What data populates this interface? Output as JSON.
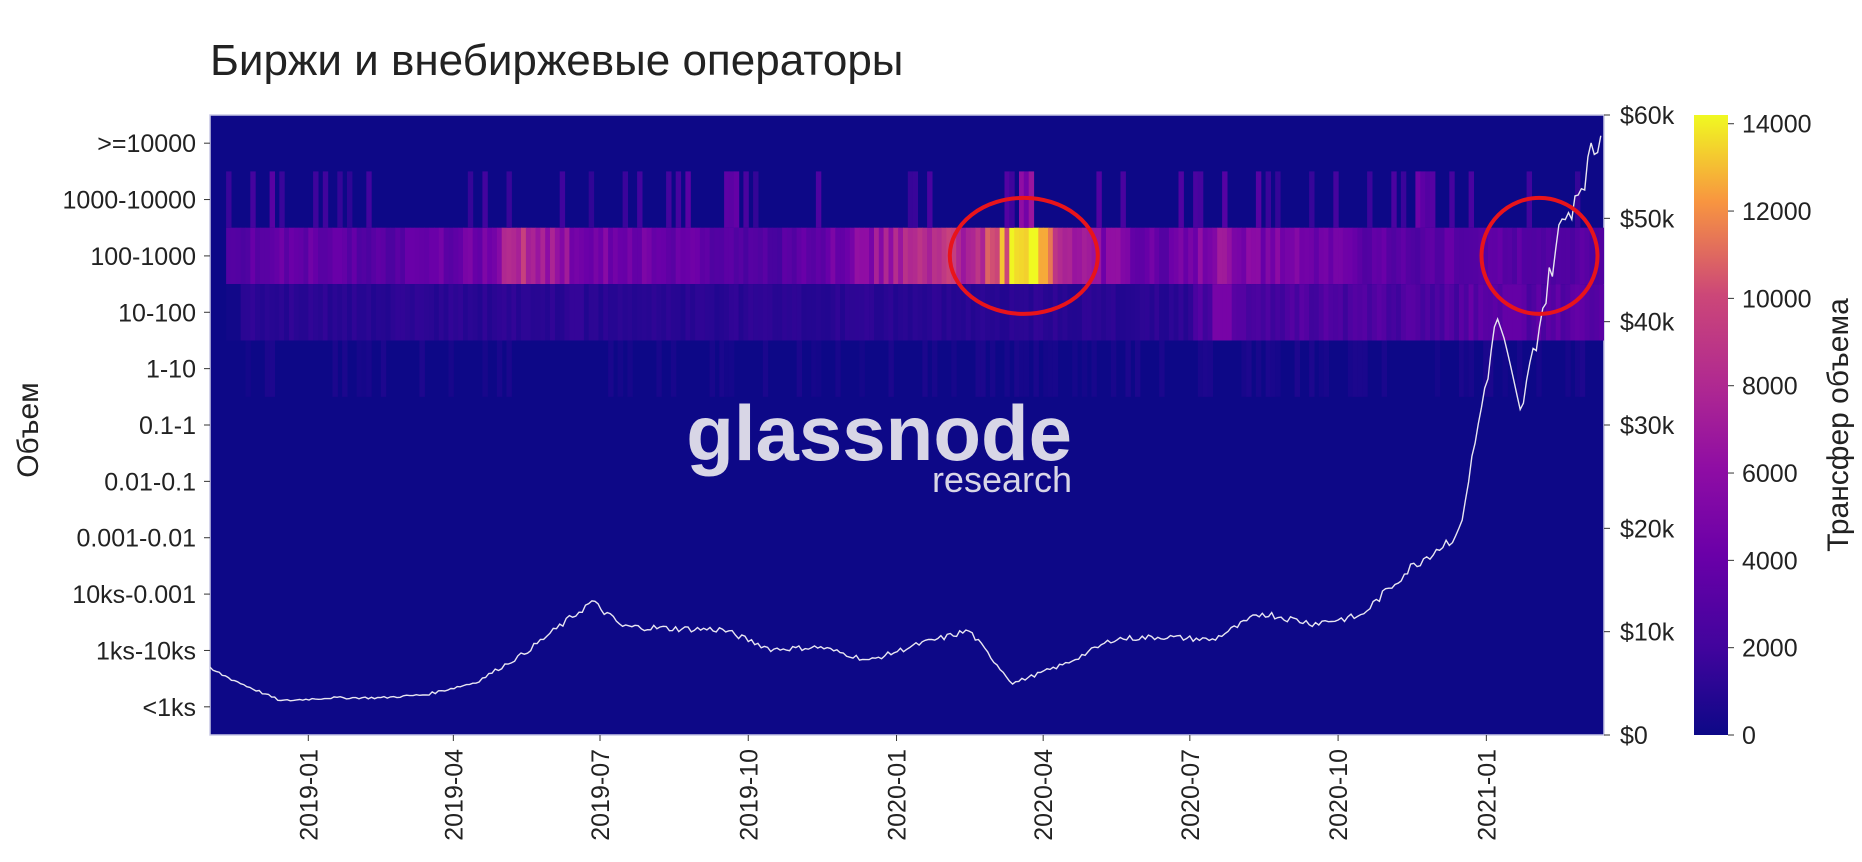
{
  "chart_data": {
    "type": "heatmap",
    "title": "Биржи и внебиржевые операторы",
    "ylabel": "Объем",
    "colorbar_label": "Трансфер объема",
    "y_categories": [
      "<1ks",
      "1ks-10ks",
      "10ks-0.001",
      "0.001-0.01",
      "0.01-0.1",
      "0.1-1",
      "1-10",
      "10-100",
      "100-1000",
      "1000-10000",
      ">=10000"
    ],
    "x_range": [
      "2018-11-01",
      "2021-03-15"
    ],
    "x_ticks": [
      "2019-01",
      "2019-04",
      "2019-07",
      "2019-10",
      "2020-01",
      "2020-04",
      "2020-07",
      "2020-10",
      "2021-01"
    ],
    "colorbar": {
      "min": 0,
      "max": 14200,
      "ticks": [
        "0",
        "2000",
        "4000",
        "6000",
        "8000",
        "10000",
        "12000",
        "14000"
      ],
      "colormap": "plasma"
    },
    "price_axis": {
      "label_ticks": [
        "$0",
        "$10k",
        "$20k",
        "$30k",
        "$40k",
        "$50k",
        "$60k"
      ],
      "max": 60000
    },
    "heat_rows": {
      "100-1000": [
        {
          "x": "2018-11-15",
          "v": 3000
        },
        {
          "x": "2018-12-15",
          "v": 4000
        },
        {
          "x": "2019-01-15",
          "v": 3500
        },
        {
          "x": "2019-02-15",
          "v": 3200
        },
        {
          "x": "2019-03-15",
          "v": 3600
        },
        {
          "x": "2019-04-15",
          "v": 4500
        },
        {
          "x": "2019-05-15",
          "v": 8800
        },
        {
          "x": "2019-06-15",
          "v": 5200
        },
        {
          "x": "2019-07-15",
          "v": 4800
        },
        {
          "x": "2019-08-15",
          "v": 4000
        },
        {
          "x": "2019-09-15",
          "v": 3200
        },
        {
          "x": "2019-10-15",
          "v": 2600
        },
        {
          "x": "2019-11-15",
          "v": 3800
        },
        {
          "x": "2019-12-15",
          "v": 6000
        },
        {
          "x": "2020-01-15",
          "v": 9600
        },
        {
          "x": "2020-02-15",
          "v": 7000
        },
        {
          "x": "2020-03-20",
          "v": 14200
        },
        {
          "x": "2020-04-15",
          "v": 6500
        },
        {
          "x": "2020-05-15",
          "v": 5200
        },
        {
          "x": "2020-06-15",
          "v": 3600
        },
        {
          "x": "2020-07-15",
          "v": 6000
        },
        {
          "x": "2020-08-15",
          "v": 5000
        },
        {
          "x": "2020-09-15",
          "v": 4400
        },
        {
          "x": "2020-10-15",
          "v": 3600
        },
        {
          "x": "2020-11-15",
          "v": 3200
        },
        {
          "x": "2020-12-15",
          "v": 3400
        },
        {
          "x": "2021-01-15",
          "v": 3200
        },
        {
          "x": "2021-02-15",
          "v": 3000
        }
      ],
      "1000-10000": [
        {
          "x": "2020-03-20",
          "v": 7500
        },
        {
          "x": "2019-09-20",
          "v": 5500
        },
        {
          "x": "2020-11-20",
          "v": 4500
        }
      ],
      "10-100": [
        {
          "x": "2019-06-15",
          "v": 1500
        },
        {
          "x": "2020-07-20",
          "v": 4800
        },
        {
          "x": "2020-11-15",
          "v": 2800
        },
        {
          "x": "2021-01-15",
          "v": 3800
        }
      ]
    },
    "price_series": [
      {
        "x": "2018-11-01",
        "y": 6400
      },
      {
        "x": "2018-11-20",
        "y": 5000
      },
      {
        "x": "2018-12-15",
        "y": 3300
      },
      {
        "x": "2019-01-15",
        "y": 3600
      },
      {
        "x": "2019-02-15",
        "y": 3600
      },
      {
        "x": "2019-03-15",
        "y": 3900
      },
      {
        "x": "2019-04-15",
        "y": 5100
      },
      {
        "x": "2019-05-15",
        "y": 7900
      },
      {
        "x": "2019-06-26",
        "y": 12900
      },
      {
        "x": "2019-07-15",
        "y": 10500
      },
      {
        "x": "2019-08-15",
        "y": 10300
      },
      {
        "x": "2019-09-15",
        "y": 10200
      },
      {
        "x": "2019-10-15",
        "y": 8300
      },
      {
        "x": "2019-11-15",
        "y": 8500
      },
      {
        "x": "2019-12-15",
        "y": 7200
      },
      {
        "x": "2020-01-15",
        "y": 8800
      },
      {
        "x": "2020-02-15",
        "y": 10100
      },
      {
        "x": "2020-03-13",
        "y": 5000
      },
      {
        "x": "2020-04-15",
        "y": 6900
      },
      {
        "x": "2020-05-15",
        "y": 9300
      },
      {
        "x": "2020-06-15",
        "y": 9500
      },
      {
        "x": "2020-07-15",
        "y": 9200
      },
      {
        "x": "2020-08-15",
        "y": 11800
      },
      {
        "x": "2020-09-15",
        "y": 10800
      },
      {
        "x": "2020-10-15",
        "y": 11500
      },
      {
        "x": "2020-11-15",
        "y": 16200
      },
      {
        "x": "2020-12-15",
        "y": 19500
      },
      {
        "x": "2021-01-08",
        "y": 40500
      },
      {
        "x": "2021-01-22",
        "y": 31000
      },
      {
        "x": "2021-02-15",
        "y": 48500
      },
      {
        "x": "2021-03-13",
        "y": 58000
      }
    ],
    "annotations": [
      {
        "type": "circle",
        "x": "2020-03-20",
        "row": "100-1000"
      },
      {
        "type": "circle",
        "x": "2021-02-03",
        "row": "100-1000"
      }
    ],
    "watermark": {
      "main": "glassnode",
      "sub": "research"
    },
    "colors": {
      "background": "#0d0887",
      "price_line": "#e8e6f0",
      "circle": "#e8141b"
    }
  }
}
